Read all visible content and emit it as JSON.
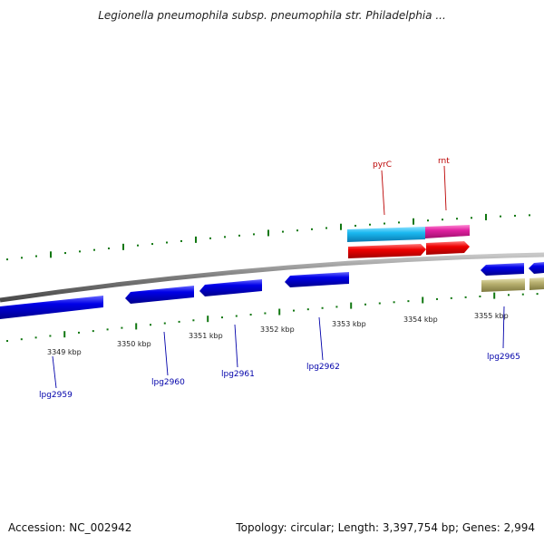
{
  "title": "Legionella pneumophila subsp. pneumophila str. Philadelphia ...",
  "footer": {
    "accession": "Accession: NC_002942",
    "stats": "Topology: circular; Length: 3,397,754 bp; Genes: 2,994"
  },
  "colors": {
    "forward_blue": "#0000e0",
    "reverse_blue": "#0000e0",
    "cyan": "#1ab8f0",
    "magenta": "#e020a0",
    "red": "#ee0000",
    "khaki": "#b8b070",
    "backbone": "#808080",
    "tick": "#117711",
    "label_blue": "#0000aa",
    "label_red": "#bb0000"
  },
  "ticks": [
    {
      "label": "3349 kbp",
      "kbp": 3349
    },
    {
      "label": "3350 kbp",
      "kbp": 3350
    },
    {
      "label": "3351 kbp",
      "kbp": 3351
    },
    {
      "label": "3352 kbp",
      "kbp": 3352
    },
    {
      "label": "3353 kbp",
      "kbp": 3353
    },
    {
      "label": "3354 kbp",
      "kbp": 3354
    },
    {
      "label": "3355 kbp",
      "kbp": 3355
    }
  ],
  "genes": [
    {
      "label": "lpg2959",
      "color": "label_blue"
    },
    {
      "label": "lpg2960",
      "color": "label_blue"
    },
    {
      "label": "lpg2961",
      "color": "label_blue"
    },
    {
      "label": "lpg2962",
      "color": "label_blue"
    },
    {
      "label": "lpg2965",
      "color": "label_blue"
    },
    {
      "label": "pyrC",
      "color": "label_red"
    },
    {
      "label": "rnt",
      "color": "label_red"
    }
  ]
}
